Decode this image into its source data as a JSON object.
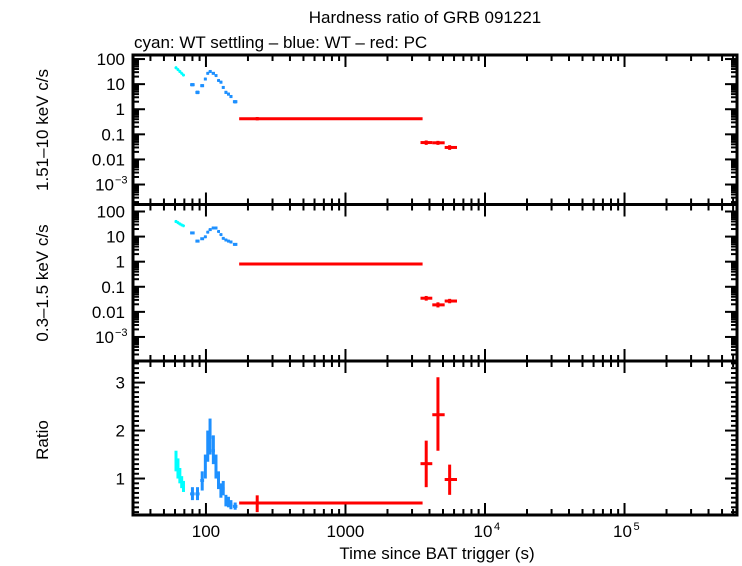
{
  "title": "Hardness ratio of GRB 091221",
  "subtitle": "cyan: WT settling – blue: WT – red: PC",
  "colors": {
    "wt_settling": "#00FFFF",
    "wt": "#1E90FF",
    "pc": "#FF0000",
    "axes": "#000000"
  },
  "x_axis": {
    "label": "Time since BAT trigger (s)",
    "scale": "log",
    "range": [
      30,
      640000
    ],
    "ticks": [
      {
        "value": 100,
        "base": "100",
        "exp": ""
      },
      {
        "value": 1000,
        "base": "1000",
        "exp": ""
      },
      {
        "value": 10000,
        "base": "10",
        "exp": "4"
      },
      {
        "value": 100000,
        "base": "10",
        "exp": "5"
      }
    ]
  },
  "chart_data": [
    {
      "type": "scatter",
      "panel": "hard-band",
      "ylabel": "1.51–10 keV c/s",
      "yscale": "log",
      "ylim": [
        0.00016,
        145
      ],
      "yticks": [
        {
          "value": 100,
          "base": "100",
          "exp": ""
        },
        {
          "value": 10,
          "base": "10",
          "exp": ""
        },
        {
          "value": 1,
          "base": "1",
          "exp": ""
        },
        {
          "value": 0.1,
          "base": "0.1",
          "exp": ""
        },
        {
          "value": 0.01,
          "base": "0.01",
          "exp": ""
        },
        {
          "value": 0.001,
          "base": "10",
          "exp": "−3"
        }
      ],
      "series": [
        {
          "name": "WT settling",
          "color_key": "wt_settling",
          "columns": [
            "t",
            "t_lo",
            "t_hi",
            "y",
            "y_lo",
            "y_hi"
          ],
          "points": [
            [
              61,
              60,
              62,
              45,
              41,
              49
            ],
            [
              63,
              62,
              64,
              38,
              35,
              41
            ],
            [
              65,
              64,
              66,
              32,
              29,
              35
            ],
            [
              67,
              66,
              68,
              27,
              25,
              29
            ],
            [
              69,
              68,
              70,
              23,
              21,
              25
            ]
          ]
        },
        {
          "name": "WT",
          "color_key": "wt",
          "columns": [
            "t",
            "t_lo",
            "t_hi",
            "y",
            "y_lo",
            "y_hi"
          ],
          "points": [
            [
              80,
              77,
              83,
              9.5,
              8.2,
              11
            ],
            [
              87,
              84,
              90,
              4.7,
              4.0,
              5.5
            ],
            [
              94,
              91,
              97,
              8.7,
              7.6,
              10
            ],
            [
              99,
              97,
              101,
              16,
              14,
              18
            ],
            [
              103,
              101,
              105,
              27,
              24,
              30
            ],
            [
              107,
              105,
              110,
              32,
              29,
              35
            ],
            [
              113,
              110,
              116,
              27,
              24,
              30
            ],
            [
              118,
              116,
              121,
              22,
              20,
              24
            ],
            [
              123,
              121,
              126,
              14,
              12.5,
              15.5
            ],
            [
              128,
              126,
              131,
              12,
              10.5,
              13.5
            ],
            [
              133,
              131,
              136,
              7.4,
              6.5,
              8.4
            ],
            [
              139,
              136,
              142,
              4.7,
              4.1,
              5.4
            ],
            [
              145,
              142,
              148,
              4.0,
              3.5,
              4.6
            ],
            [
              151,
              148,
              155,
              3.2,
              2.8,
              3.7
            ],
            [
              162,
              156,
              168,
              2.0,
              1.7,
              2.3
            ]
          ]
        },
        {
          "name": "PC",
          "color_key": "pc",
          "columns": [
            "t",
            "t_lo",
            "t_hi",
            "y",
            "y_lo",
            "y_hi"
          ],
          "points": [
            [
              233,
              173,
              3570,
              0.42,
              0.36,
              0.49
            ],
            [
              3790,
              3450,
              4190,
              0.047,
              0.038,
              0.057
            ],
            [
              4600,
              4190,
              5140,
              0.046,
              0.038,
              0.055
            ],
            [
              5580,
              5140,
              6300,
              0.03,
              0.024,
              0.037
            ]
          ]
        }
      ]
    },
    {
      "type": "scatter",
      "panel": "soft-band",
      "ylabel": "0.3–1.5 keV c/s",
      "yscale": "log",
      "ylim": [
        0.00011,
        190
      ],
      "yticks": [
        {
          "value": 100,
          "base": "100",
          "exp": ""
        },
        {
          "value": 10,
          "base": "10",
          "exp": ""
        },
        {
          "value": 1,
          "base": "1",
          "exp": ""
        },
        {
          "value": 0.1,
          "base": "0.1",
          "exp": ""
        },
        {
          "value": 0.01,
          "base": "0.01",
          "exp": ""
        },
        {
          "value": 0.001,
          "base": "10",
          "exp": "−3"
        }
      ],
      "series": [
        {
          "name": "WT settling",
          "color_key": "wt_settling",
          "columns": [
            "t",
            "t_lo",
            "t_hi",
            "y",
            "y_lo",
            "y_hi"
          ],
          "points": [
            [
              61,
              60,
              62,
              40,
              36,
              44
            ],
            [
              63,
              62,
              64,
              36,
              33,
              39
            ],
            [
              65,
              64,
              66,
              32,
              29,
              35
            ],
            [
              67,
              66,
              68,
              29,
              27,
              31
            ],
            [
              69,
              68,
              70,
              27,
              25,
              29
            ]
          ]
        },
        {
          "name": "WT",
          "color_key": "wt",
          "columns": [
            "t",
            "t_lo",
            "t_hi",
            "y",
            "y_lo",
            "y_hi"
          ],
          "points": [
            [
              80,
              77,
              83,
              14,
              12.5,
              15.5
            ],
            [
              87,
              84,
              90,
              6.6,
              5.8,
              7.5
            ],
            [
              94,
              91,
              97,
              8.2,
              7.3,
              9.2
            ],
            [
              99,
              97,
              101,
              9.8,
              8.8,
              11
            ],
            [
              103,
              101,
              105,
              15,
              13.5,
              16.5
            ],
            [
              107,
              105,
              110,
              19,
              17,
              21
            ],
            [
              113,
              110,
              116,
              22,
              20,
              24
            ],
            [
              118,
              116,
              121,
              22,
              20,
              24
            ],
            [
              123,
              121,
              126,
              16,
              14.5,
              17.5
            ],
            [
              128,
              126,
              131,
              12,
              10.8,
              13.3
            ],
            [
              133,
              131,
              136,
              8.5,
              7.6,
              9.5
            ],
            [
              139,
              136,
              142,
              7.3,
              6.5,
              8.2
            ],
            [
              145,
              142,
              148,
              6.6,
              5.9,
              7.4
            ],
            [
              151,
              148,
              155,
              6.1,
              5.4,
              6.9
            ],
            [
              162,
              156,
              168,
              4.9,
              4.3,
              5.5
            ]
          ]
        },
        {
          "name": "PC",
          "color_key": "pc",
          "columns": [
            "t",
            "t_lo",
            "t_hi",
            "y",
            "y_lo",
            "y_hi"
          ],
          "points": [
            [
              233,
              173,
              3570,
              0.81,
              0.72,
              0.91
            ],
            [
              3790,
              3450,
              4190,
              0.035,
              0.028,
              0.043
            ],
            [
              4600,
              4190,
              5140,
              0.019,
              0.015,
              0.024
            ],
            [
              5580,
              5140,
              6300,
              0.027,
              0.022,
              0.033
            ]
          ]
        }
      ]
    },
    {
      "type": "scatter",
      "panel": "ratio",
      "ylabel": "Ratio",
      "yscale": "linear",
      "ylim": [
        0.24,
        3.45
      ],
      "yticks": [
        {
          "value": 1,
          "base": "1",
          "exp": ""
        },
        {
          "value": 2,
          "base": "2",
          "exp": ""
        },
        {
          "value": 3,
          "base": "3",
          "exp": ""
        }
      ],
      "series": [
        {
          "name": "WT settling",
          "color_key": "wt_settling",
          "columns": [
            "t",
            "t_lo",
            "t_hi",
            "y",
            "y_lo",
            "y_hi"
          ],
          "points": [
            [
              61,
              60,
              62,
              1.38,
              1.15,
              1.58
            ],
            [
              63,
              62,
              64,
              1.22,
              1.0,
              1.42
            ],
            [
              65,
              64,
              66,
              1.05,
              0.9,
              1.22
            ],
            [
              67,
              66,
              68,
              0.92,
              0.8,
              1.05
            ],
            [
              69,
              68,
              70,
              0.85,
              0.72,
              0.95
            ]
          ]
        },
        {
          "name": "WT",
          "color_key": "wt",
          "columns": [
            "t",
            "t_lo",
            "t_hi",
            "y",
            "y_lo",
            "y_hi"
          ],
          "points": [
            [
              80,
              77,
              83,
              0.68,
              0.55,
              0.82
            ],
            [
              87,
              84,
              90,
              0.68,
              0.55,
              0.82
            ],
            [
              94,
              91,
              97,
              0.96,
              0.75,
              1.15
            ],
            [
              99,
              97,
              101,
              1.24,
              1.0,
              1.5
            ],
            [
              103,
              101,
              105,
              1.65,
              1.35,
              2.0
            ],
            [
              107,
              105,
              110,
              1.86,
              1.5,
              2.25
            ],
            [
              113,
              110,
              116,
              1.58,
              1.3,
              1.9
            ],
            [
              118,
              116,
              121,
              1.24,
              1.0,
              1.5
            ],
            [
              123,
              121,
              126,
              0.96,
              0.78,
              1.15
            ],
            [
              128,
              126,
              131,
              0.75,
              0.6,
              0.9
            ],
            [
              133,
              131,
              136,
              0.79,
              0.65,
              0.95
            ],
            [
              139,
              136,
              142,
              0.54,
              0.42,
              0.66
            ],
            [
              145,
              142,
              148,
              0.51,
              0.4,
              0.62
            ],
            [
              151,
              148,
              155,
              0.45,
              0.36,
              0.55
            ],
            [
              162,
              156,
              168,
              0.42,
              0.35,
              0.5
            ]
          ]
        },
        {
          "name": "PC",
          "color_key": "pc",
          "columns": [
            "t",
            "t_lo",
            "t_hi",
            "y",
            "y_lo",
            "y_hi"
          ],
          "points": [
            [
              233,
              173,
              3570,
              0.49,
              0.3,
              0.65
            ],
            [
              3790,
              3450,
              4190,
              1.31,
              0.82,
              1.79
            ],
            [
              4600,
              4190,
              5140,
              2.33,
              1.58,
              3.11
            ],
            [
              5580,
              5140,
              6300,
              0.98,
              0.66,
              1.29
            ]
          ]
        }
      ]
    }
  ]
}
